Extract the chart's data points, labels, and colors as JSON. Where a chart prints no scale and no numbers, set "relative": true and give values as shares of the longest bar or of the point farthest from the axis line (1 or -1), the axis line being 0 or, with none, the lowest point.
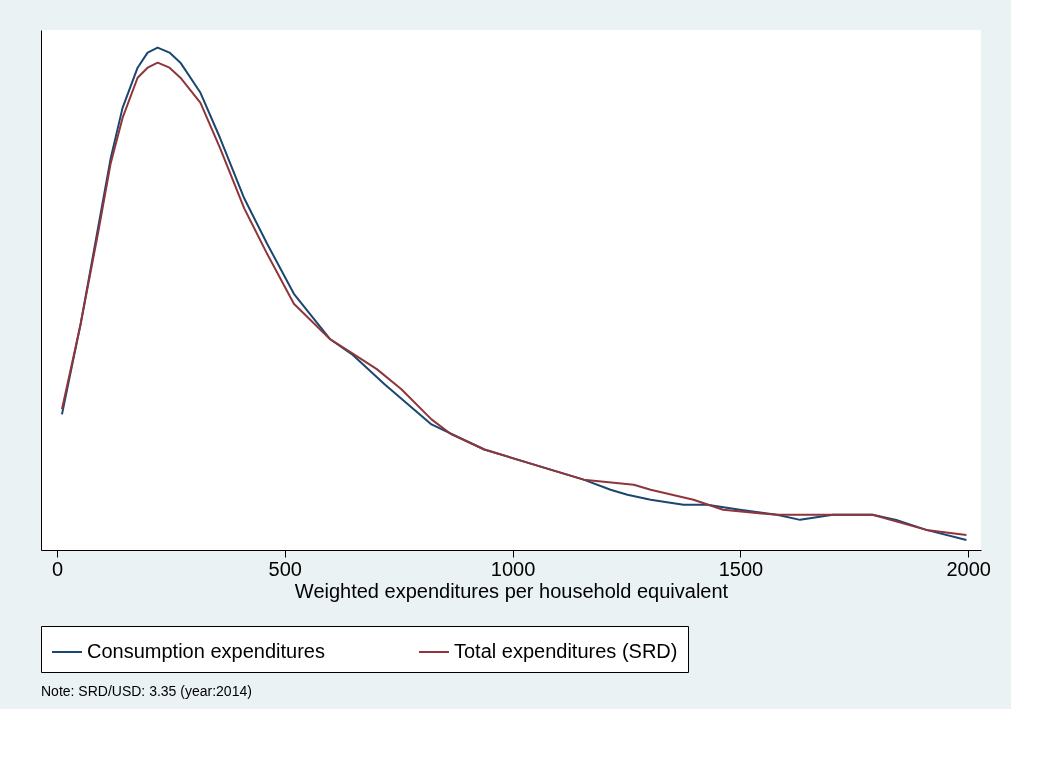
{
  "chart_data": {
    "type": "line",
    "relative": true,
    "xlabel": "Weighted expenditures per household equivalent",
    "xlim": [
      -35,
      2028
    ],
    "xticks": [
      0,
      500,
      1000,
      1500,
      2000
    ],
    "grid": false,
    "legend": "bottom",
    "marker": "none",
    "line_style": "solid",
    "annotations": [
      "Note: SRD/USD: 3.35 (year:2014)"
    ],
    "series": [
      {
        "name": "Consumption expenditures",
        "color": "#1a476f",
        "x": [
          11,
          52,
          90,
          118,
          144,
          177,
          199,
          221,
          247,
          271,
          315,
          358,
          411,
          461,
          520,
          599,
          647,
          719,
          822,
          938,
          1047,
          1156,
          1215,
          1252,
          1303,
          1375,
          1427,
          1499,
          1580,
          1631,
          1703,
          1790,
          1842,
          1908,
          1996
        ],
        "values": [
          0.27,
          0.45,
          0.64,
          0.78,
          0.88,
          0.96,
          0.99,
          1.0,
          0.99,
          0.97,
          0.91,
          0.82,
          0.7,
          0.61,
          0.51,
          0.42,
          0.39,
          0.33,
          0.25,
          0.2,
          0.17,
          0.14,
          0.12,
          0.11,
          0.1,
          0.09,
          0.09,
          0.08,
          0.07,
          0.06,
          0.07,
          0.07,
          0.06,
          0.04,
          0.02
        ]
      },
      {
        "name": "Total expenditures (SRD)",
        "color": "#90353b",
        "x": [
          11,
          52,
          90,
          118,
          144,
          177,
          199,
          221,
          247,
          271,
          315,
          358,
          411,
          461,
          520,
          599,
          651,
          702,
          756,
          822,
          866,
          938,
          1047,
          1156,
          1266,
          1303,
          1397,
          1462,
          1580,
          1703,
          1790,
          1908,
          1996
        ],
        "values": [
          0.28,
          0.45,
          0.63,
          0.77,
          0.86,
          0.94,
          0.96,
          0.97,
          0.96,
          0.94,
          0.89,
          0.8,
          0.68,
          0.59,
          0.49,
          0.42,
          0.39,
          0.36,
          0.32,
          0.26,
          0.23,
          0.2,
          0.17,
          0.14,
          0.13,
          0.12,
          0.1,
          0.08,
          0.07,
          0.07,
          0.07,
          0.04,
          0.03
        ]
      }
    ]
  }
}
